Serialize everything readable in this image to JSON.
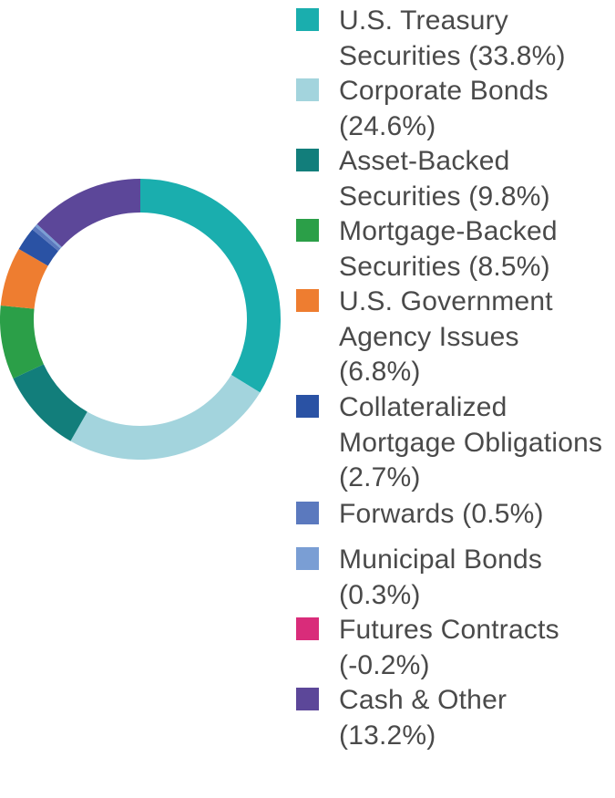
{
  "chart_data": {
    "type": "pie",
    "variant": "donut",
    "legend_position": "right",
    "slices": [
      {
        "label": "U.S. Treasury Securities (33.8%)",
        "value": 33.8,
        "color": "#1aaeae"
      },
      {
        "label": "Corporate Bonds (24.6%)",
        "value": 24.6,
        "color": "#a3d4dd"
      },
      {
        "label": "Asset-Backed Securities (9.8%)",
        "value": 9.8,
        "color": "#127e7b"
      },
      {
        "label": "Mortgage-Backed Securities (8.5%)",
        "value": 8.5,
        "color": "#2b9f48"
      },
      {
        "label": "U.S. Government Agency Issues (6.8%)",
        "value": 6.8,
        "color": "#ee7d30"
      },
      {
        "label": "Collateralized Mortgage Obligations (2.7%)",
        "value": 2.7,
        "color": "#2a52a4"
      },
      {
        "label": "Forwards (0.5%)",
        "value": 0.5,
        "color": "#5b79be"
      },
      {
        "label": "Municipal Bonds (0.3%)",
        "value": 0.3,
        "color": "#7a9ed4"
      },
      {
        "label": "Futures Contracts (-0.2%)",
        "value": -0.2,
        "color": "#d92c7a"
      },
      {
        "label": "Cash & Other (13.2%)",
        "value": 13.2,
        "color": "#5c4799"
      }
    ]
  }
}
